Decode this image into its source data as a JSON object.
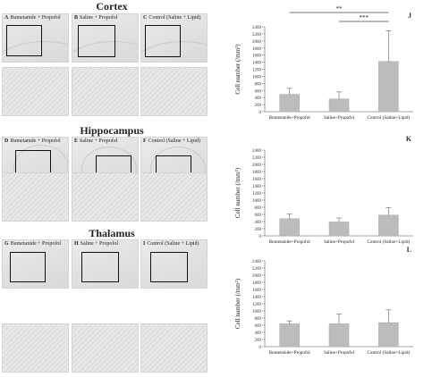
{
  "regions": [
    {
      "title": "Cortex",
      "panels": [
        {
          "letter": "A",
          "label": "Bumetanide + Propofol"
        },
        {
          "letter": "B",
          "label": "Saline + Propofol"
        },
        {
          "letter": "C",
          "label": "Control (Saline + Lipid)"
        }
      ]
    },
    {
      "title": "Hippocampus",
      "panels": [
        {
          "letter": "D",
          "label": "Bumetanide + Propofol"
        },
        {
          "letter": "E",
          "label": "Saline + Propofol"
        },
        {
          "letter": "F",
          "label": "Control (Saline + Lipid)"
        }
      ]
    },
    {
      "title": "Thalamus",
      "panels": [
        {
          "letter": "G",
          "label": "Bumetanide + Propofol"
        },
        {
          "letter": "H",
          "label": "Saline + Propofol"
        },
        {
          "letter": "I",
          "label": "Control (Saline + Lipid)"
        }
      ]
    }
  ],
  "chart_data": [
    {
      "panel": "J",
      "type": "bar",
      "categories": [
        "Bumetanide+Propofol",
        "Saline+Propofol",
        "Control (Saline+Lipid)"
      ],
      "values": [
        490,
        360,
        1420
      ],
      "errors": [
        170,
        200,
        870
      ],
      "ylabel": "Cell number (/mm²)",
      "ylim": [
        0,
        2400
      ],
      "yticks": [
        0,
        200,
        400,
        600,
        800,
        1000,
        1200,
        1400,
        1600,
        1800,
        2000,
        2200,
        2400
      ],
      "bar_color": "#bcbcbc",
      "significance": [
        {
          "label": "**",
          "from": 0,
          "to": 2
        },
        {
          "label": "***",
          "from": 1,
          "to": 2
        }
      ]
    },
    {
      "panel": "K",
      "type": "bar",
      "categories": [
        "Bumetanide+Propofol",
        "Saline+Propofol",
        "Control (Saline+Lipid)"
      ],
      "values": [
        480,
        390,
        580
      ],
      "errors": [
        130,
        110,
        210
      ],
      "ylabel": "Cell number (/mm²)",
      "ylim": [
        0,
        2400
      ],
      "yticks": [
        0,
        200,
        400,
        600,
        800,
        1000,
        1200,
        1400,
        1600,
        1800,
        2000,
        2200,
        2400
      ],
      "bar_color": "#bcbcbc",
      "significance": []
    },
    {
      "panel": "L",
      "type": "bar",
      "categories": [
        "Bumetanide+Propofol",
        "Saline+Propofol",
        "Control (Saline+Lipid)"
      ],
      "values": [
        640,
        640,
        670
      ],
      "errors": [
        80,
        270,
        360
      ],
      "ylabel": "Cell number (/mm²)",
      "ylim": [
        0,
        2400
      ],
      "yticks": [
        0,
        200,
        400,
        600,
        800,
        1000,
        1200,
        1400,
        1600,
        1800,
        2000,
        2200,
        2400
      ],
      "bar_color": "#bcbcbc",
      "significance": []
    }
  ]
}
